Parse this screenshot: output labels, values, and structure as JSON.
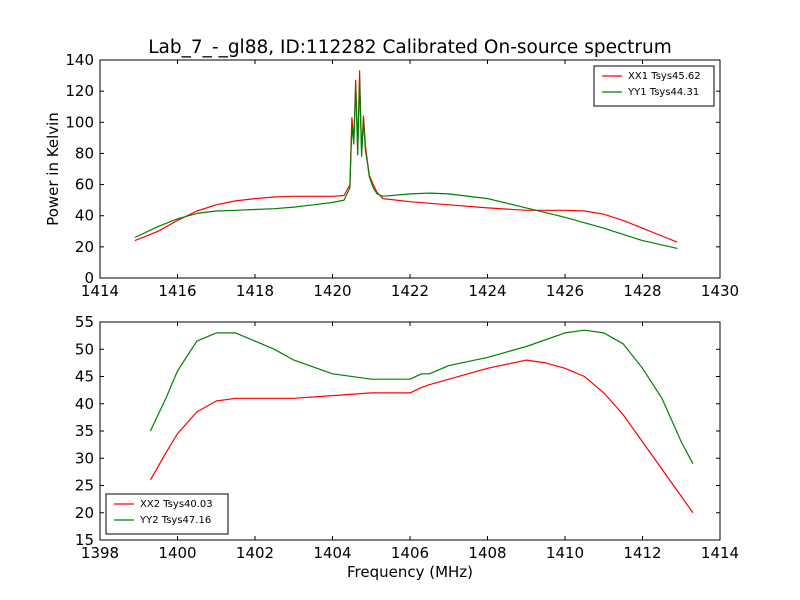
{
  "figure": {
    "title": "Lab_7_-_gl88, ID:112282 Calibrated On-source spectrum",
    "xlabel": "Frequency (MHz)"
  },
  "colors": {
    "red": "#ff0000",
    "green": "#008000",
    "frame": "#000000",
    "background": "#ffffff"
  },
  "chart_data": [
    {
      "type": "line",
      "title": "Lab_7_-_gl88, ID:112282 Calibrated On-source spectrum",
      "xlabel": "",
      "ylabel": "Power in Kelvin",
      "xlim": [
        1414,
        1430
      ],
      "ylim": [
        0,
        140
      ],
      "xticks": [
        "1414",
        "1416",
        "1418",
        "1420",
        "1422",
        "1424",
        "1426",
        "1428",
        "1430"
      ],
      "yticks": [
        "0",
        "20",
        "40",
        "60",
        "80",
        "100",
        "120",
        "140"
      ],
      "legend_position": "top-right",
      "grid": false,
      "series": [
        {
          "name": "XX1 Tsys45.62",
          "color": "#ff0000",
          "x": [
            1414.9,
            1415.5,
            1416,
            1416.5,
            1417,
            1417.5,
            1418,
            1418.5,
            1419,
            1419.5,
            1420,
            1420.3,
            1420.45,
            1420.5,
            1420.55,
            1420.6,
            1420.65,
            1420.7,
            1420.75,
            1420.8,
            1420.85,
            1420.9,
            1420.95,
            1421.05,
            1421.15,
            1421.3,
            1422,
            1423,
            1424,
            1425,
            1426,
            1426.5,
            1427,
            1427.5,
            1428,
            1428.5,
            1428.9
          ],
          "y": [
            24,
            30,
            37,
            43,
            47,
            49.5,
            51,
            52,
            52.5,
            52.5,
            52.5,
            53,
            60,
            103,
            88,
            127,
            82,
            133,
            80,
            104,
            85,
            75,
            66,
            60,
            55,
            51,
            49,
            47,
            45,
            43.5,
            43.5,
            43,
            41,
            37,
            32,
            27,
            23
          ]
        },
        {
          "name": "YY1 Tsys44.31",
          "color": "#008000",
          "x": [
            1414.9,
            1415.5,
            1416,
            1416.5,
            1417,
            1417.5,
            1418,
            1418.5,
            1419,
            1419.5,
            1420,
            1420.3,
            1420.45,
            1420.5,
            1420.55,
            1420.6,
            1420.65,
            1420.7,
            1420.75,
            1420.8,
            1420.85,
            1420.9,
            1420.95,
            1421.05,
            1421.15,
            1421.3,
            1422,
            1422.5,
            1423,
            1424,
            1425,
            1426,
            1427,
            1428,
            1428.9
          ],
          "y": [
            26,
            33,
            38,
            41.5,
            43,
            43.5,
            44,
            44.5,
            45.5,
            47,
            48.5,
            50,
            58,
            98,
            86,
            124,
            79,
            128,
            78,
            102,
            82,
            74,
            65,
            58,
            54,
            52.5,
            54,
            54.5,
            54,
            51,
            45,
            39,
            32,
            24,
            19
          ]
        }
      ]
    },
    {
      "type": "line",
      "title": "",
      "xlabel": "Frequency (MHz)",
      "ylabel": "",
      "xlim": [
        1398,
        1414
      ],
      "ylim": [
        15,
        55
      ],
      "xticks": [
        "1398",
        "1400",
        "1402",
        "1404",
        "1406",
        "1408",
        "1410",
        "1412",
        "1414"
      ],
      "yticks": [
        "15",
        "20",
        "25",
        "30",
        "35",
        "40",
        "45",
        "50",
        "55"
      ],
      "legend_position": "bottom-left",
      "grid": false,
      "series": [
        {
          "name": "XX2 Tsys40.03",
          "color": "#ff0000",
          "x": [
            1399.3,
            1399.7,
            1400,
            1400.5,
            1401,
            1401.5,
            1402,
            1403,
            1404,
            1405,
            1406,
            1406.3,
            1406.5,
            1407,
            1408,
            1409,
            1409.5,
            1410,
            1410.5,
            1411,
            1411.5,
            1412,
            1412.5,
            1413,
            1413.3
          ],
          "y": [
            26,
            31,
            34.5,
            38.5,
            40.5,
            41,
            41,
            41,
            41.5,
            42,
            42,
            43,
            43.5,
            44.5,
            46.5,
            48,
            47.5,
            46.5,
            45,
            42,
            38,
            33,
            28,
            23,
            20
          ]
        },
        {
          "name": "YY2 Tsys47.16",
          "color": "#008000",
          "x": [
            1399.3,
            1399.7,
            1400,
            1400.5,
            1401,
            1401.5,
            1402,
            1402.5,
            1403,
            1404,
            1405,
            1406,
            1406.3,
            1406.5,
            1407,
            1408,
            1409,
            1410,
            1410.5,
            1411,
            1411.5,
            1412,
            1412.5,
            1413,
            1413.3
          ],
          "y": [
            35,
            41,
            46,
            51.5,
            53,
            53,
            51.5,
            50,
            48,
            45.5,
            44.5,
            44.5,
            45.5,
            45.5,
            47,
            48.5,
            50.5,
            53,
            53.5,
            53,
            51,
            46.5,
            41,
            33,
            29
          ]
        }
      ]
    }
  ]
}
